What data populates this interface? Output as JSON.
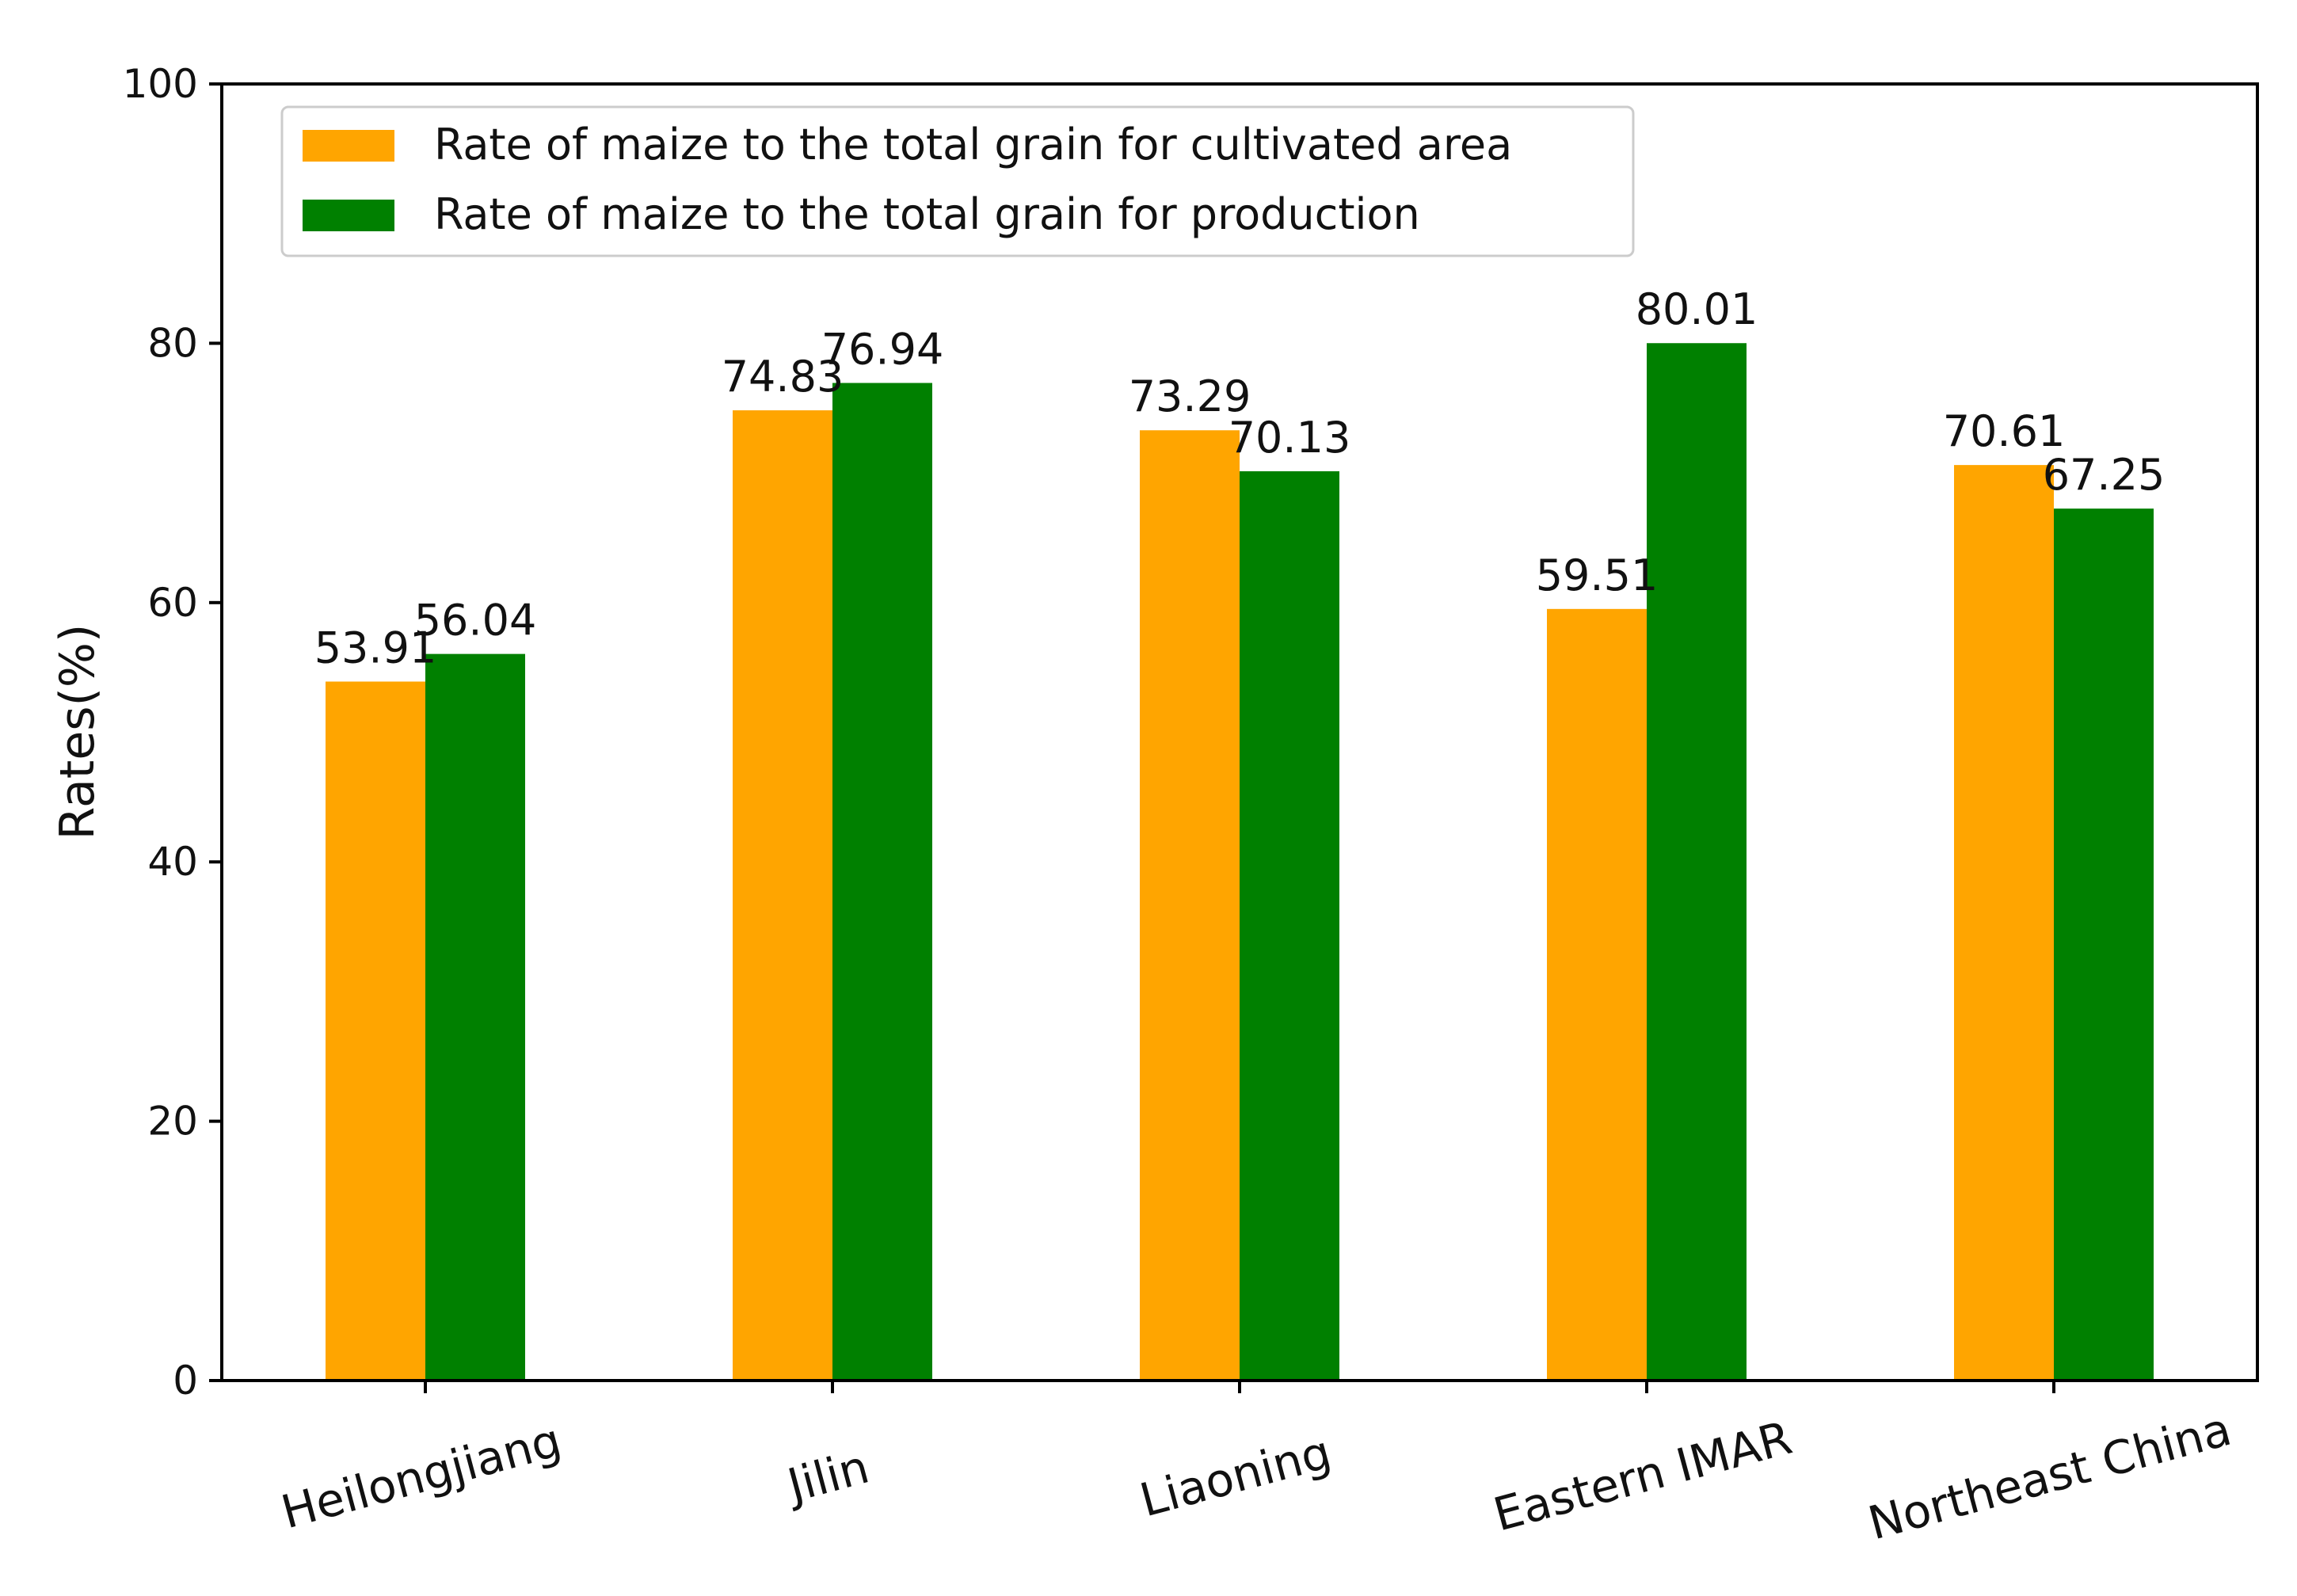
{
  "chart_data": {
    "type": "bar",
    "title": "",
    "xlabel": "",
    "ylabel": "Rates(%)",
    "ylim": [
      0,
      100
    ],
    "yticks": [
      0,
      20,
      40,
      60,
      80,
      100
    ],
    "categories": [
      "Heilongjiang",
      "Jilin",
      "Liaoning",
      "Eastern IMAR",
      "Northeast China"
    ],
    "series": [
      {
        "name": "Rate of maize to the total grain for cultivated area",
        "color": "#FFA500",
        "values": [
          53.91,
          74.83,
          73.29,
          59.51,
          70.61
        ],
        "labels": [
          "53.91",
          "74.83",
          "73.29",
          "59.51",
          "70.61"
        ]
      },
      {
        "name": "Rate of maize to the total grain for production",
        "color": "#008000",
        "values": [
          56.04,
          76.94,
          70.13,
          80.01,
          67.25
        ],
        "labels": [
          "56.04",
          "76.94",
          "70.13",
          "80.01",
          "67.25"
        ]
      }
    ],
    "legend_position": "top-left",
    "grid": false
  }
}
